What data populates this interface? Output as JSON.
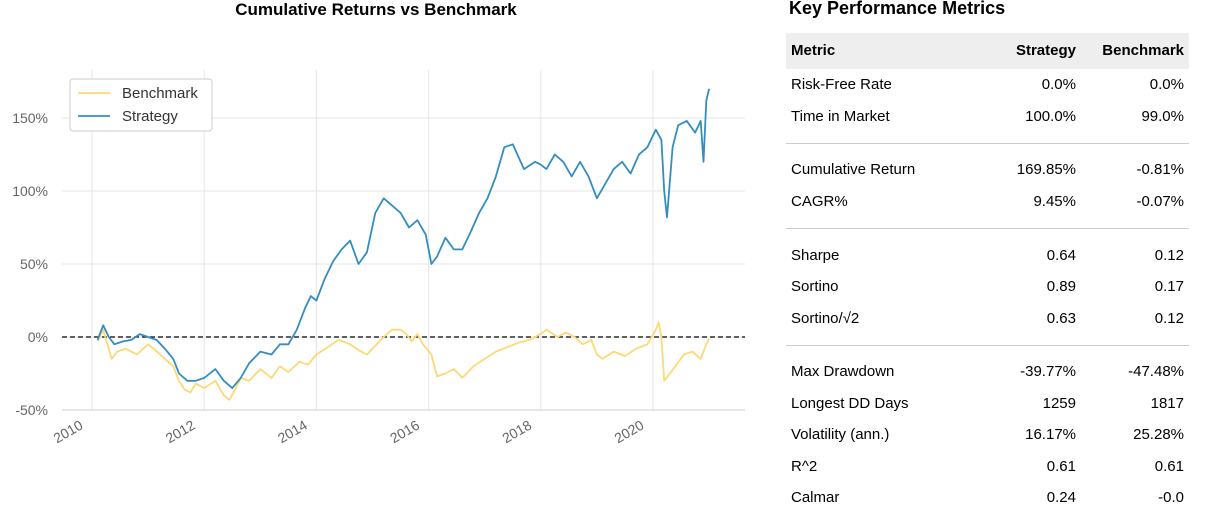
{
  "chart_data": {
    "type": "line",
    "title": "Cumulative Returns vs Benchmark",
    "xlabel": "",
    "ylabel": "",
    "x_range": [
      2010.0,
      2021.0
    ],
    "ylim": [
      -0.55,
      1.85
    ],
    "yticks": [
      {
        "value": -0.5,
        "label": "-50%"
      },
      {
        "value": 0.0,
        "label": "0%"
      },
      {
        "value": 0.5,
        "label": "50%"
      },
      {
        "value": 1.0,
        "label": "100%"
      },
      {
        "value": 1.5,
        "label": "150%"
      }
    ],
    "xticks": [
      {
        "value": 2010,
        "label": "2010"
      },
      {
        "value": 2012,
        "label": "2012"
      },
      {
        "value": 2014,
        "label": "2014"
      },
      {
        "value": 2016,
        "label": "2016"
      },
      {
        "value": 2018,
        "label": "2018"
      },
      {
        "value": 2020,
        "label": "2020"
      }
    ],
    "grid": true,
    "zero_line": true,
    "legend_position": "top-left",
    "series": [
      {
        "name": "Benchmark",
        "color": "#fcd976",
        "x": [
          2010.1,
          2010.2,
          2010.35,
          2010.45,
          2010.6,
          2010.8,
          2011.0,
          2011.1,
          2011.3,
          2011.45,
          2011.55,
          2011.65,
          2011.75,
          2011.85,
          2012.0,
          2012.2,
          2012.35,
          2012.45,
          2012.55,
          2012.65,
          2012.8,
          2013.0,
          2013.2,
          2013.35,
          2013.5,
          2013.7,
          2013.85,
          2014.0,
          2014.2,
          2014.4,
          2014.6,
          2014.75,
          2014.9,
          2015.05,
          2015.2,
          2015.35,
          2015.5,
          2015.6,
          2015.7,
          2015.8,
          2015.9,
          2016.05,
          2016.15,
          2016.3,
          2016.45,
          2016.6,
          2016.8,
          2017.0,
          2017.2,
          2017.4,
          2017.6,
          2017.8,
          2018.0,
          2018.1,
          2018.3,
          2018.45,
          2018.6,
          2018.75,
          2018.9,
          2019.0,
          2019.1,
          2019.3,
          2019.5,
          2019.7,
          2019.9,
          2020.05,
          2020.1,
          2020.15,
          2020.2,
          2020.3,
          2020.4,
          2020.55,
          2020.7,
          2020.85,
          2020.95,
          2021.0
        ],
        "y": [
          -0.03,
          0.05,
          -0.15,
          -0.1,
          -0.08,
          -0.12,
          -0.05,
          -0.08,
          -0.15,
          -0.2,
          -0.3,
          -0.36,
          -0.38,
          -0.32,
          -0.35,
          -0.3,
          -0.4,
          -0.43,
          -0.36,
          -0.28,
          -0.3,
          -0.22,
          -0.28,
          -0.2,
          -0.24,
          -0.17,
          -0.19,
          -0.12,
          -0.07,
          -0.02,
          -0.05,
          -0.09,
          -0.12,
          -0.06,
          0.0,
          0.05,
          0.05,
          0.02,
          -0.03,
          0.02,
          -0.05,
          -0.12,
          -0.27,
          -0.25,
          -0.22,
          -0.28,
          -0.2,
          -0.15,
          -0.1,
          -0.07,
          -0.04,
          -0.02,
          0.02,
          0.05,
          0.0,
          0.03,
          0.0,
          -0.05,
          -0.02,
          -0.12,
          -0.15,
          -0.1,
          -0.13,
          -0.08,
          -0.05,
          0.05,
          0.1,
          0.0,
          -0.3,
          -0.25,
          -0.2,
          -0.12,
          -0.1,
          -0.15,
          -0.05,
          -0.01
        ]
      },
      {
        "name": "Strategy",
        "color": "#348dc1",
        "x": [
          2010.1,
          2010.2,
          2010.3,
          2010.4,
          2010.55,
          2010.7,
          2010.85,
          2011.0,
          2011.15,
          2011.3,
          2011.45,
          2011.55,
          2011.7,
          2011.85,
          2012.0,
          2012.2,
          2012.35,
          2012.5,
          2012.65,
          2012.8,
          2013.0,
          2013.2,
          2013.35,
          2013.5,
          2013.65,
          2013.8,
          2013.9,
          2014.0,
          2014.15,
          2014.3,
          2014.45,
          2014.6,
          2014.75,
          2014.9,
          2015.05,
          2015.2,
          2015.35,
          2015.5,
          2015.65,
          2015.8,
          2015.95,
          2016.05,
          2016.15,
          2016.3,
          2016.45,
          2016.6,
          2016.75,
          2016.9,
          2017.05,
          2017.2,
          2017.35,
          2017.5,
          2017.7,
          2017.9,
          2018.0,
          2018.1,
          2018.25,
          2018.4,
          2018.55,
          2018.7,
          2018.85,
          2019.0,
          2019.15,
          2019.3,
          2019.45,
          2019.6,
          2019.75,
          2019.9,
          2020.05,
          2020.15,
          2020.2,
          2020.25,
          2020.35,
          2020.45,
          2020.6,
          2020.75,
          2020.85,
          2020.9,
          2020.95,
          2021.0
        ],
        "y": [
          -0.02,
          0.08,
          0.0,
          -0.05,
          -0.03,
          -0.02,
          0.02,
          0.0,
          -0.02,
          -0.08,
          -0.15,
          -0.25,
          -0.3,
          -0.3,
          -0.28,
          -0.22,
          -0.3,
          -0.35,
          -0.28,
          -0.18,
          -0.1,
          -0.12,
          -0.05,
          -0.05,
          0.05,
          0.2,
          0.28,
          0.25,
          0.4,
          0.52,
          0.6,
          0.66,
          0.5,
          0.58,
          0.85,
          0.95,
          0.9,
          0.85,
          0.75,
          0.8,
          0.7,
          0.5,
          0.55,
          0.68,
          0.6,
          0.6,
          0.72,
          0.85,
          0.95,
          1.1,
          1.3,
          1.32,
          1.15,
          1.2,
          1.18,
          1.15,
          1.25,
          1.2,
          1.1,
          1.2,
          1.1,
          0.95,
          1.05,
          1.15,
          1.2,
          1.12,
          1.25,
          1.3,
          1.42,
          1.35,
          1.0,
          0.82,
          1.3,
          1.45,
          1.48,
          1.4,
          1.48,
          1.2,
          1.62,
          1.7
        ]
      }
    ]
  },
  "metrics": {
    "title": "Key Performance Metrics",
    "headers": {
      "metric": "Metric",
      "strategy": "Strategy",
      "benchmark": "Benchmark"
    },
    "rows": [
      {
        "metric": "Risk-Free Rate",
        "strategy": "0.0%",
        "benchmark": "0.0%"
      },
      {
        "metric": "Time in Market",
        "strategy": "100.0%",
        "benchmark": "99.0%"
      },
      {
        "metric": "Cumulative Return",
        "strategy": "169.85%",
        "benchmark": "-0.81%"
      },
      {
        "metric": "CAGR%",
        "strategy": "9.45%",
        "benchmark": "-0.07%"
      },
      {
        "metric": "Sharpe",
        "strategy": "0.64",
        "benchmark": "0.12"
      },
      {
        "metric": "Sortino",
        "strategy": "0.89",
        "benchmark": "0.17"
      },
      {
        "metric": "Sortino/√2",
        "strategy": "0.63",
        "benchmark": "0.12"
      },
      {
        "metric": "Max Drawdown",
        "strategy": "-39.77%",
        "benchmark": "-47.48%"
      },
      {
        "metric": "Longest DD Days",
        "strategy": "1259",
        "benchmark": "1817"
      },
      {
        "metric": "Volatility (ann.)",
        "strategy": "16.17%",
        "benchmark": "25.28%"
      },
      {
        "metric": "R^2",
        "strategy": "0.61",
        "benchmark": "0.61"
      },
      {
        "metric": "Calmar",
        "strategy": "0.24",
        "benchmark": "-0.0"
      }
    ]
  }
}
